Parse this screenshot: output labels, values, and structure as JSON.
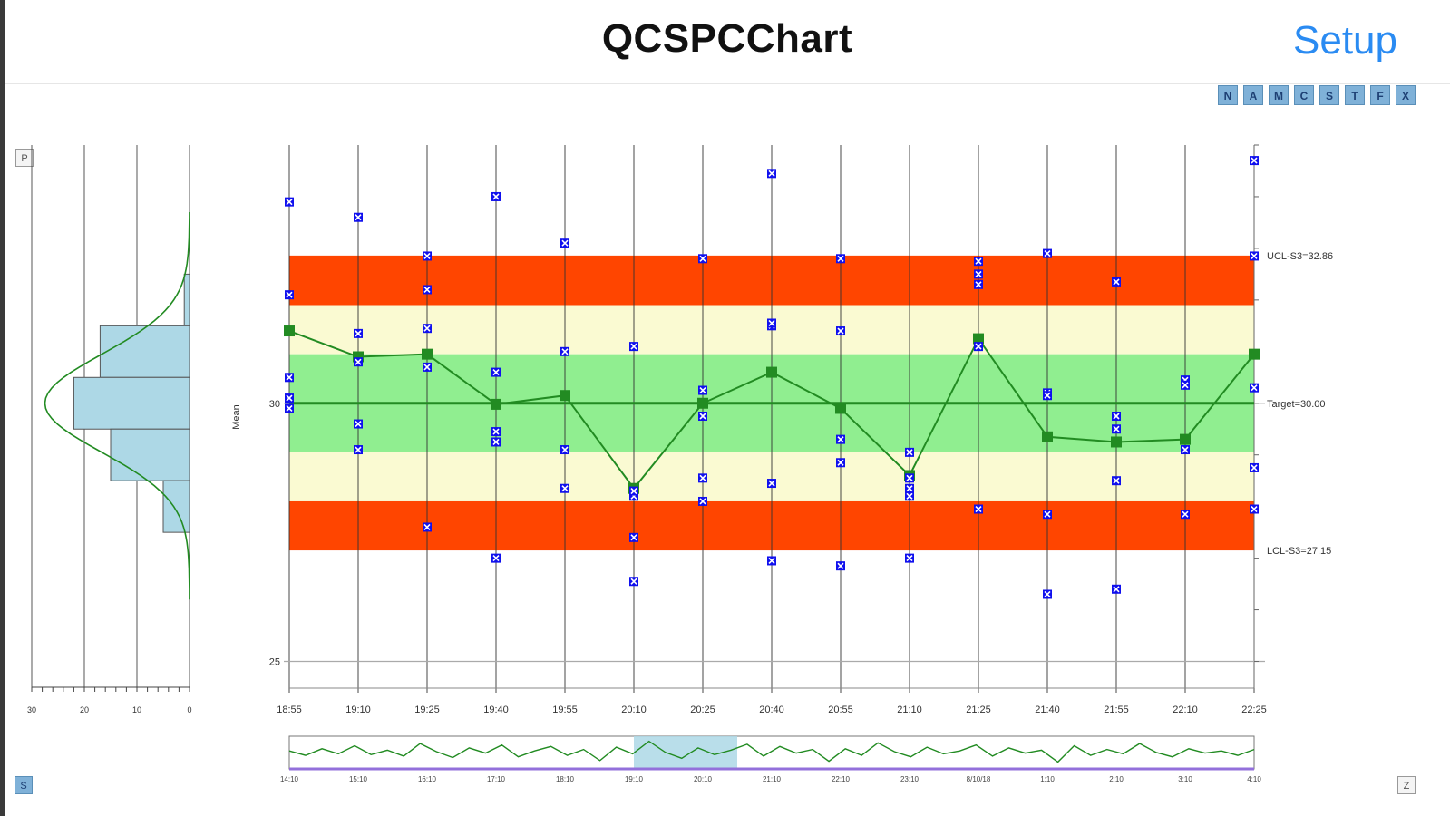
{
  "app": {
    "title": "QCSPCChart",
    "setup_label": "Setup",
    "toolbar": [
      "N",
      "A",
      "M",
      "C",
      "S",
      "T",
      "F",
      "X"
    ],
    "corner_top_left": "P",
    "corner_bottom_left": "S",
    "corner_bottom_right": "Z"
  },
  "colors": {
    "red_zone": "#ff4500",
    "yellow_zone": "#fafad2",
    "green_zone": "#90ee90",
    "mean_line": "#228b22",
    "samples": "#1010ee",
    "histogram": "#add8e6",
    "accent": "#2a8bf2"
  },
  "chart_data": [
    {
      "type": "line",
      "title": "",
      "ylabel": "Mean",
      "xlabel": "",
      "ylim": [
        24.5,
        35
      ],
      "yticks": [
        {
          "value": 25,
          "label": "25"
        },
        {
          "value": 30,
          "label": "30"
        }
      ],
      "x_labels": [
        "18:55",
        "19:10",
        "19:25",
        "19:40",
        "19:55",
        "20:10",
        "20:25",
        "20:40",
        "20:55",
        "21:10",
        "21:25",
        "21:40",
        "21:55",
        "22:10",
        "22:25"
      ],
      "limits": {
        "ucl": 32.86,
        "ucl_label": "UCL-S3=32.86",
        "target": 30.0,
        "target_label": "Target=30.00",
        "lcl": 27.15,
        "lcl_label": "LCL-S3=27.15",
        "zone_b_upper": 31.9,
        "zone_c_upper": 30.95,
        "zone_c_lower": 29.05,
        "zone_b_lower": 28.1
      },
      "zones": [
        "red",
        "yellow",
        "green",
        "green",
        "yellow",
        "red"
      ],
      "grid": true,
      "series": [
        {
          "role": "mean",
          "values": [
            31.4,
            30.9,
            30.95,
            29.98,
            30.15,
            28.35,
            30.0,
            30.6,
            29.9,
            28.6,
            31.25,
            29.35,
            29.25,
            29.3,
            30.95
          ]
        },
        {
          "role": "samples",
          "values": [
            [
              33.9,
              32.1,
              30.5,
              30.1,
              29.9
            ],
            [
              33.6,
              31.35,
              30.8,
              29.6,
              29.1
            ],
            [
              32.85,
              32.2,
              31.45,
              30.7,
              27.6
            ],
            [
              34.0,
              30.6,
              29.45,
              29.25,
              27.0
            ],
            [
              33.1,
              31.0,
              29.1,
              28.35
            ],
            [
              31.1,
              28.2,
              28.3,
              27.4,
              26.55
            ],
            [
              32.8,
              30.25,
              29.75,
              28.55,
              28.1
            ],
            [
              34.45,
              31.5,
              31.55,
              28.45,
              26.95
            ],
            [
              32.8,
              31.4,
              29.3,
              28.85,
              26.85
            ],
            [
              29.05,
              28.55,
              28.2,
              28.35,
              27.0
            ],
            [
              32.75,
              32.5,
              32.3,
              31.1,
              27.95
            ],
            [
              32.9,
              30.2,
              30.15,
              27.85,
              26.3
            ],
            [
              32.35,
              29.75,
              29.5,
              28.5,
              26.4
            ],
            [
              30.45,
              30.35,
              29.1,
              27.85
            ],
            [
              34.7,
              32.85,
              30.3,
              28.75,
              27.95
            ]
          ]
        }
      ]
    },
    {
      "type": "bar",
      "orientation": "horizontal",
      "role": "frequency histogram",
      "x_tick_labels": [
        "30",
        "20",
        "10",
        "0"
      ],
      "xlim": [
        0,
        30
      ],
      "bins": [
        {
          "from": 31.5,
          "to": 32.5,
          "count": 1
        },
        {
          "from": 30.5,
          "to": 31.5,
          "count": 17
        },
        {
          "from": 29.5,
          "to": 30.5,
          "count": 22
        },
        {
          "from": 28.5,
          "to": 29.5,
          "count": 15
        },
        {
          "from": 27.5,
          "to": 28.5,
          "count": 5
        }
      ],
      "normal_fit": true
    },
    {
      "type": "line",
      "role": "overview scroll bar",
      "x_labels": [
        "14:10",
        "15:10",
        "16:10",
        "17:10",
        "18:10",
        "19:10",
        "20:10",
        "21:10",
        "22:10",
        "23:10",
        "8/10/18",
        "1:10",
        "2:10",
        "3:10",
        "4:10"
      ],
      "values": [
        30.2,
        29.6,
        30.5,
        29.8,
        30.9,
        29.7,
        30.3,
        29.5,
        31.2,
        30.1,
        29.3,
        30.6,
        29.9,
        31.0,
        29.4,
        30.2,
        30.8,
        29.6,
        30.4,
        28.9,
        30.7,
        29.8,
        31.5,
        30.0,
        29.2,
        30.6,
        29.7,
        30.3,
        31.1,
        29.5,
        30.8,
        29.9,
        30.4,
        28.8,
        30.5,
        29.6,
        31.3,
        30.1,
        29.4,
        30.7,
        29.8,
        30.2,
        31.0,
        29.5,
        30.6,
        29.9,
        30.3,
        28.7,
        30.9,
        29.6,
        30.4,
        29.8,
        31.2,
        30.0,
        29.4,
        30.5,
        29.9,
        30.2,
        29.6,
        30.4
      ],
      "selection": {
        "from": "19:10",
        "to": "20:40"
      }
    }
  ]
}
